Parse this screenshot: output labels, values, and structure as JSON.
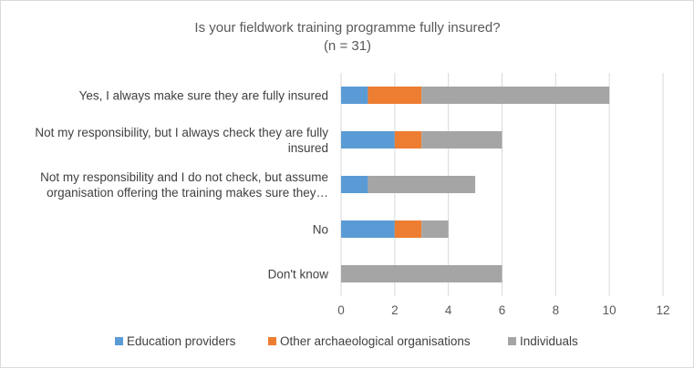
{
  "chart_data": {
    "type": "bar",
    "orientation": "horizontal",
    "stacked": true,
    "title": "Is your fieldwork training programme fully insured?",
    "subtitle": "(n = 31)",
    "categories": [
      [
        "Yes, I always make sure they are fully insured"
      ],
      [
        "Not my responsibility, but I always check they are fully",
        "insured"
      ],
      [
        "Not my responsibility and I do not check, but assume",
        "organisation offering the training makes sure they…"
      ],
      [
        "No"
      ],
      [
        "Don't know"
      ]
    ],
    "series": [
      {
        "name": "Education providers",
        "color": "#5b9bd5",
        "values": [
          1,
          2,
          1,
          2,
          0
        ]
      },
      {
        "name": "Other archaeological organisations",
        "color": "#ed7d31",
        "values": [
          2,
          1,
          0,
          1,
          0
        ]
      },
      {
        "name": "Individuals",
        "color": "#a5a5a5",
        "values": [
          7,
          3,
          4,
          1,
          6
        ]
      }
    ],
    "xlim": [
      0,
      12
    ],
    "xticks": [
      0,
      2,
      4,
      6,
      8,
      10,
      12
    ],
    "grid": "vertical",
    "legend": "bottom"
  }
}
